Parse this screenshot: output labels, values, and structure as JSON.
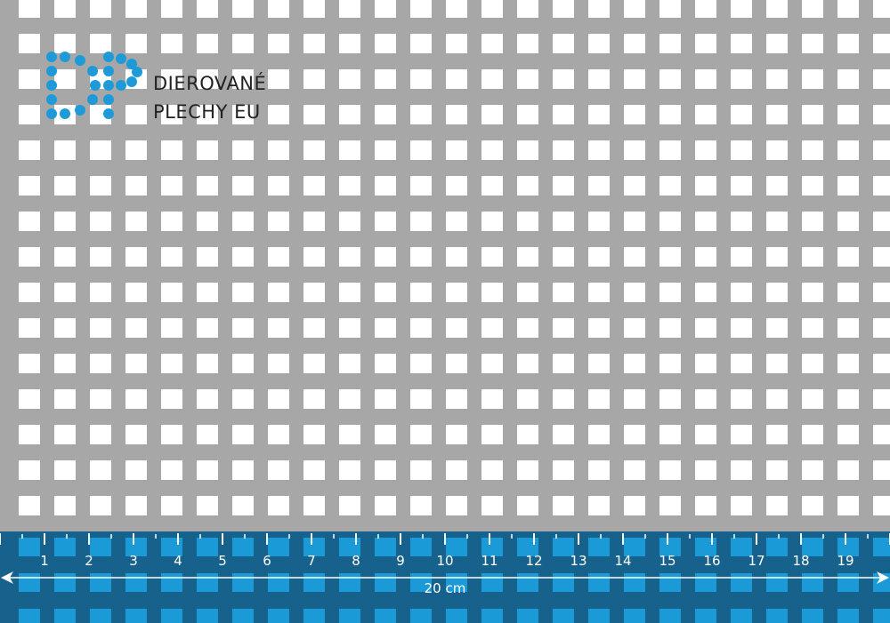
{
  "brand": {
    "line1": "DIEROVANÉ",
    "line2": "PLECHY EU",
    "logo_letters": "DP",
    "logo_color": "#1e9ad8"
  },
  "colors": {
    "sheet": "#a7a7a7",
    "hole": "#ffffff",
    "ruler_bg": "#17628c",
    "ruler_hole": "#1a9ad6"
  },
  "ruler": {
    "labels": [
      "1",
      "2",
      "3",
      "4",
      "5",
      "6",
      "7",
      "8",
      "9",
      "10",
      "11",
      "12",
      "13",
      "14",
      "15",
      "16",
      "17",
      "18",
      "19"
    ],
    "dimension": "20 cm"
  }
}
